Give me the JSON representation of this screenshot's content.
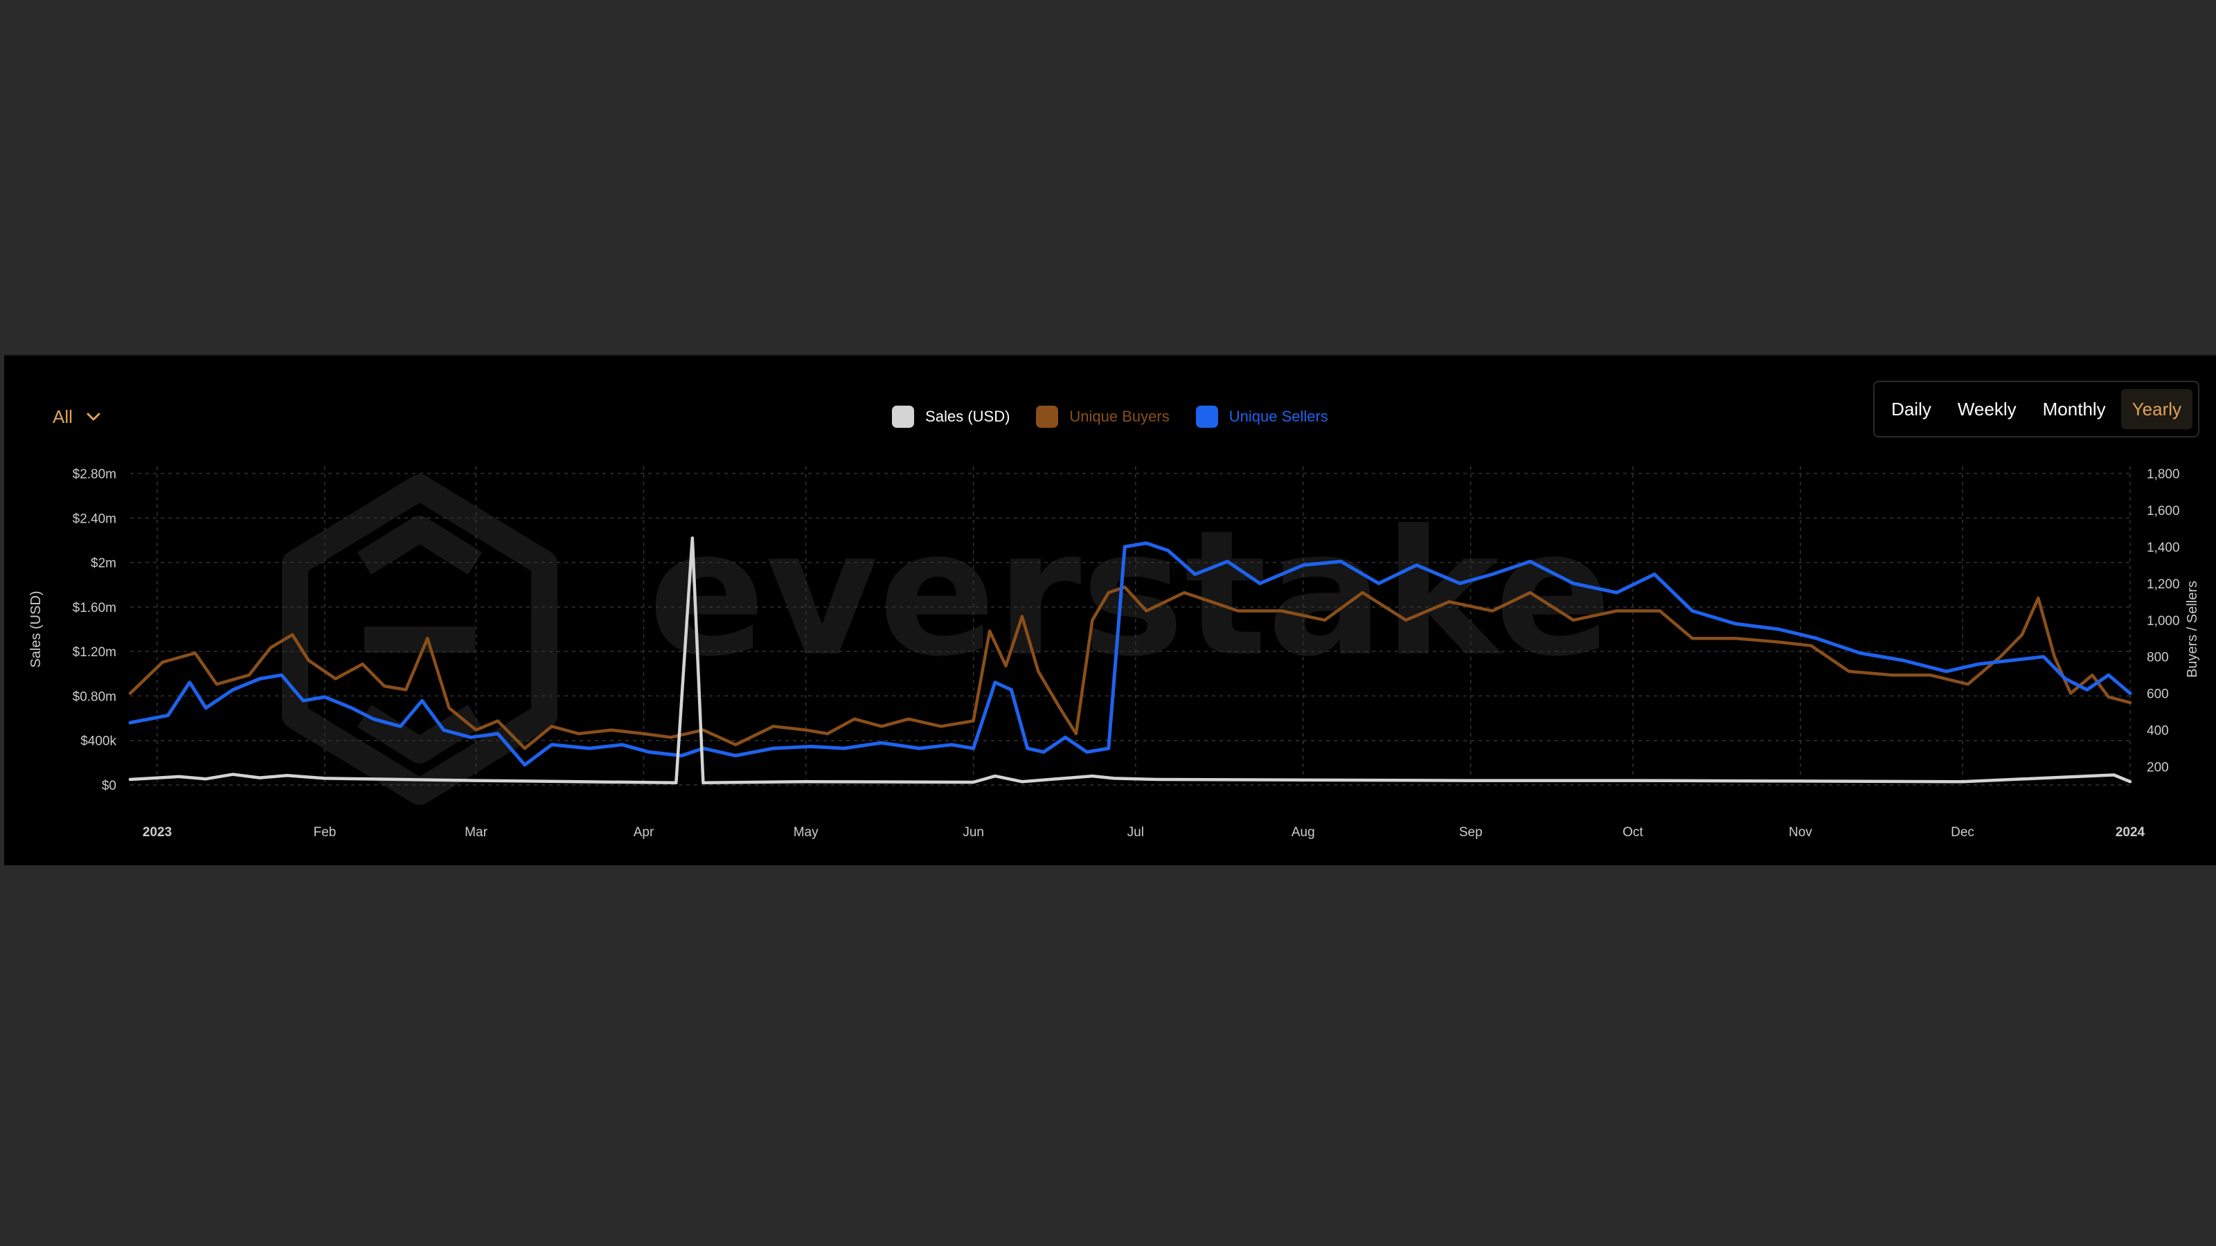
{
  "filter": {
    "label": "All"
  },
  "range_buttons": [
    {
      "label": "Daily",
      "active": false
    },
    {
      "label": "Weekly",
      "active": false
    },
    {
      "label": "Monthly",
      "active": false
    },
    {
      "label": "Yearly",
      "active": true
    }
  ],
  "watermark": "everstake",
  "colors": {
    "sales": "#d4d4d4",
    "buyers": "#8a4f1a",
    "sellers": "#1e63ee",
    "accent": "#e0a25a",
    "grid": "#333333",
    "axis_text": "#cccccc"
  },
  "chart_data": {
    "type": "line",
    "x_start": "2022-12-27",
    "x_end": "2024-01-01",
    "month_ticks": [
      "2023",
      "Feb",
      "Mar",
      "Apr",
      "May",
      "Jun",
      "Jul",
      "Aug",
      "Sep",
      "Oct",
      "Nov",
      "Dec",
      "2024"
    ],
    "month_tick_dates": [
      "2023-01-01",
      "2023-02-01",
      "2023-03-01",
      "2023-04-01",
      "2023-05-01",
      "2023-06-01",
      "2023-07-01",
      "2023-08-01",
      "2023-09-01",
      "2023-10-01",
      "2023-11-01",
      "2023-12-01",
      "2024-01-01"
    ],
    "y_left": {
      "label": "Sales (USD)",
      "min": 0,
      "max": 2800000,
      "ticks": [
        0,
        400000,
        800000,
        1200000,
        1600000,
        2000000,
        2400000,
        2800000
      ],
      "tick_labels": [
        "$0",
        "$400k",
        "$0.80m",
        "$1.20m",
        "$1.60m",
        "$2m",
        "$2.40m",
        "$2.80m"
      ]
    },
    "y_right": {
      "label": "Buyers / Sellers",
      "min": 100,
      "max": 1800,
      "ticks": [
        200,
        400,
        600,
        800,
        1000,
        1200,
        1400,
        1600,
        1800
      ],
      "tick_labels": [
        "200",
        "400",
        "600",
        "800",
        "1,000",
        "1,200",
        "1,400",
        "1,600",
        "1,800"
      ]
    },
    "legend_placement": "top-center",
    "grid": true,
    "series": [
      {
        "name": "Sales (USD)",
        "axis": "left",
        "color": "#d4d4d4",
        "points": [
          [
            "2022-12-27",
            50000
          ],
          [
            "2023-01-05",
            75000
          ],
          [
            "2023-01-10",
            55000
          ],
          [
            "2023-01-15",
            95000
          ],
          [
            "2023-01-20",
            65000
          ],
          [
            "2023-01-25",
            85000
          ],
          [
            "2023-02-01",
            60000
          ],
          [
            "2023-02-15",
            50000
          ],
          [
            "2023-03-01",
            40000
          ],
          [
            "2023-03-20",
            30000
          ],
          [
            "2023-04-07",
            20000
          ],
          [
            "2023-04-10",
            2220000
          ],
          [
            "2023-04-12",
            20000
          ],
          [
            "2023-05-01",
            30000
          ],
          [
            "2023-06-01",
            25000
          ],
          [
            "2023-06-05",
            80000
          ],
          [
            "2023-06-10",
            30000
          ],
          [
            "2023-06-23",
            80000
          ],
          [
            "2023-06-27",
            60000
          ],
          [
            "2023-07-05",
            50000
          ],
          [
            "2023-08-01",
            45000
          ],
          [
            "2023-09-01",
            40000
          ],
          [
            "2023-10-01",
            40000
          ],
          [
            "2023-11-01",
            35000
          ],
          [
            "2023-12-01",
            30000
          ],
          [
            "2023-12-29",
            90000
          ],
          [
            "2024-01-01",
            30000
          ]
        ]
      },
      {
        "name": "Unique Buyers",
        "axis": "right",
        "color": "#8a4f1a",
        "points": [
          [
            "2022-12-27",
            600
          ],
          [
            "2023-01-02",
            770
          ],
          [
            "2023-01-08",
            820
          ],
          [
            "2023-01-12",
            650
          ],
          [
            "2023-01-18",
            700
          ],
          [
            "2023-01-22",
            850
          ],
          [
            "2023-01-26",
            920
          ],
          [
            "2023-01-29",
            780
          ],
          [
            "2023-02-03",
            680
          ],
          [
            "2023-02-08",
            760
          ],
          [
            "2023-02-12",
            640
          ],
          [
            "2023-02-16",
            620
          ],
          [
            "2023-02-20",
            900
          ],
          [
            "2023-02-24",
            520
          ],
          [
            "2023-03-01",
            400
          ],
          [
            "2023-03-05",
            450
          ],
          [
            "2023-03-10",
            300
          ],
          [
            "2023-03-15",
            420
          ],
          [
            "2023-03-20",
            380
          ],
          [
            "2023-03-26",
            400
          ],
          [
            "2023-04-01",
            380
          ],
          [
            "2023-04-06",
            360
          ],
          [
            "2023-04-12",
            400
          ],
          [
            "2023-04-18",
            320
          ],
          [
            "2023-04-25",
            420
          ],
          [
            "2023-05-01",
            400
          ],
          [
            "2023-05-05",
            380
          ],
          [
            "2023-05-10",
            460
          ],
          [
            "2023-05-15",
            420
          ],
          [
            "2023-05-20",
            460
          ],
          [
            "2023-05-26",
            420
          ],
          [
            "2023-06-01",
            450
          ],
          [
            "2023-06-04",
            940
          ],
          [
            "2023-06-07",
            750
          ],
          [
            "2023-06-10",
            1020
          ],
          [
            "2023-06-13",
            720
          ],
          [
            "2023-06-17",
            520
          ],
          [
            "2023-06-20",
            380
          ],
          [
            "2023-06-23",
            1000
          ],
          [
            "2023-06-26",
            1150
          ],
          [
            "2023-06-29",
            1180
          ],
          [
            "2023-07-03",
            1050
          ],
          [
            "2023-07-10",
            1150
          ],
          [
            "2023-07-20",
            1050
          ],
          [
            "2023-07-28",
            1050
          ],
          [
            "2023-08-05",
            1000
          ],
          [
            "2023-08-12",
            1150
          ],
          [
            "2023-08-20",
            1000
          ],
          [
            "2023-08-28",
            1100
          ],
          [
            "2023-09-05",
            1050
          ],
          [
            "2023-09-12",
            1150
          ],
          [
            "2023-09-20",
            1000
          ],
          [
            "2023-09-28",
            1050
          ],
          [
            "2023-10-06",
            1050
          ],
          [
            "2023-10-12",
            900
          ],
          [
            "2023-10-20",
            900
          ],
          [
            "2023-10-28",
            880
          ],
          [
            "2023-11-03",
            860
          ],
          [
            "2023-11-10",
            720
          ],
          [
            "2023-11-18",
            700
          ],
          [
            "2023-11-25",
            700
          ],
          [
            "2023-12-02",
            650
          ],
          [
            "2023-12-08",
            800
          ],
          [
            "2023-12-12",
            920
          ],
          [
            "2023-12-15",
            1120
          ],
          [
            "2023-12-18",
            800
          ],
          [
            "2023-12-21",
            600
          ],
          [
            "2023-12-25",
            700
          ],
          [
            "2023-12-28",
            580
          ],
          [
            "2024-01-01",
            550
          ]
        ]
      },
      {
        "name": "Unique Sellers",
        "axis": "right",
        "color": "#1e63ee",
        "points": [
          [
            "2022-12-27",
            440
          ],
          [
            "2023-01-03",
            480
          ],
          [
            "2023-01-07",
            660
          ],
          [
            "2023-01-10",
            520
          ],
          [
            "2023-01-15",
            620
          ],
          [
            "2023-01-20",
            680
          ],
          [
            "2023-01-24",
            700
          ],
          [
            "2023-01-28",
            560
          ],
          [
            "2023-02-01",
            580
          ],
          [
            "2023-02-06",
            520
          ],
          [
            "2023-02-10",
            460
          ],
          [
            "2023-02-15",
            420
          ],
          [
            "2023-02-19",
            560
          ],
          [
            "2023-02-23",
            400
          ],
          [
            "2023-02-28",
            360
          ],
          [
            "2023-03-05",
            380
          ],
          [
            "2023-03-10",
            210
          ],
          [
            "2023-03-15",
            320
          ],
          [
            "2023-03-22",
            300
          ],
          [
            "2023-03-28",
            320
          ],
          [
            "2023-04-02",
            280
          ],
          [
            "2023-04-08",
            260
          ],
          [
            "2023-04-12",
            300
          ],
          [
            "2023-04-18",
            260
          ],
          [
            "2023-04-25",
            300
          ],
          [
            "2023-05-02",
            310
          ],
          [
            "2023-05-08",
            300
          ],
          [
            "2023-05-15",
            330
          ],
          [
            "2023-05-22",
            300
          ],
          [
            "2023-05-28",
            320
          ],
          [
            "2023-06-01",
            300
          ],
          [
            "2023-06-05",
            660
          ],
          [
            "2023-06-08",
            620
          ],
          [
            "2023-06-11",
            300
          ],
          [
            "2023-06-14",
            280
          ],
          [
            "2023-06-18",
            360
          ],
          [
            "2023-06-22",
            280
          ],
          [
            "2023-06-26",
            300
          ],
          [
            "2023-06-29",
            1400
          ],
          [
            "2023-07-03",
            1420
          ],
          [
            "2023-07-07",
            1380
          ],
          [
            "2023-07-12",
            1250
          ],
          [
            "2023-07-18",
            1320
          ],
          [
            "2023-07-24",
            1200
          ],
          [
            "2023-08-01",
            1300
          ],
          [
            "2023-08-08",
            1320
          ],
          [
            "2023-08-15",
            1200
          ],
          [
            "2023-08-22",
            1300
          ],
          [
            "2023-08-30",
            1200
          ],
          [
            "2023-09-05",
            1250
          ],
          [
            "2023-09-12",
            1320
          ],
          [
            "2023-09-20",
            1200
          ],
          [
            "2023-09-28",
            1150
          ],
          [
            "2023-10-05",
            1250
          ],
          [
            "2023-10-12",
            1050
          ],
          [
            "2023-10-20",
            980
          ],
          [
            "2023-10-28",
            950
          ],
          [
            "2023-11-04",
            900
          ],
          [
            "2023-11-12",
            820
          ],
          [
            "2023-11-20",
            780
          ],
          [
            "2023-11-28",
            720
          ],
          [
            "2023-12-04",
            760
          ],
          [
            "2023-12-10",
            780
          ],
          [
            "2023-12-16",
            800
          ],
          [
            "2023-12-20",
            680
          ],
          [
            "2023-12-24",
            620
          ],
          [
            "2023-12-28",
            700
          ],
          [
            "2024-01-01",
            600
          ]
        ]
      }
    ]
  }
}
